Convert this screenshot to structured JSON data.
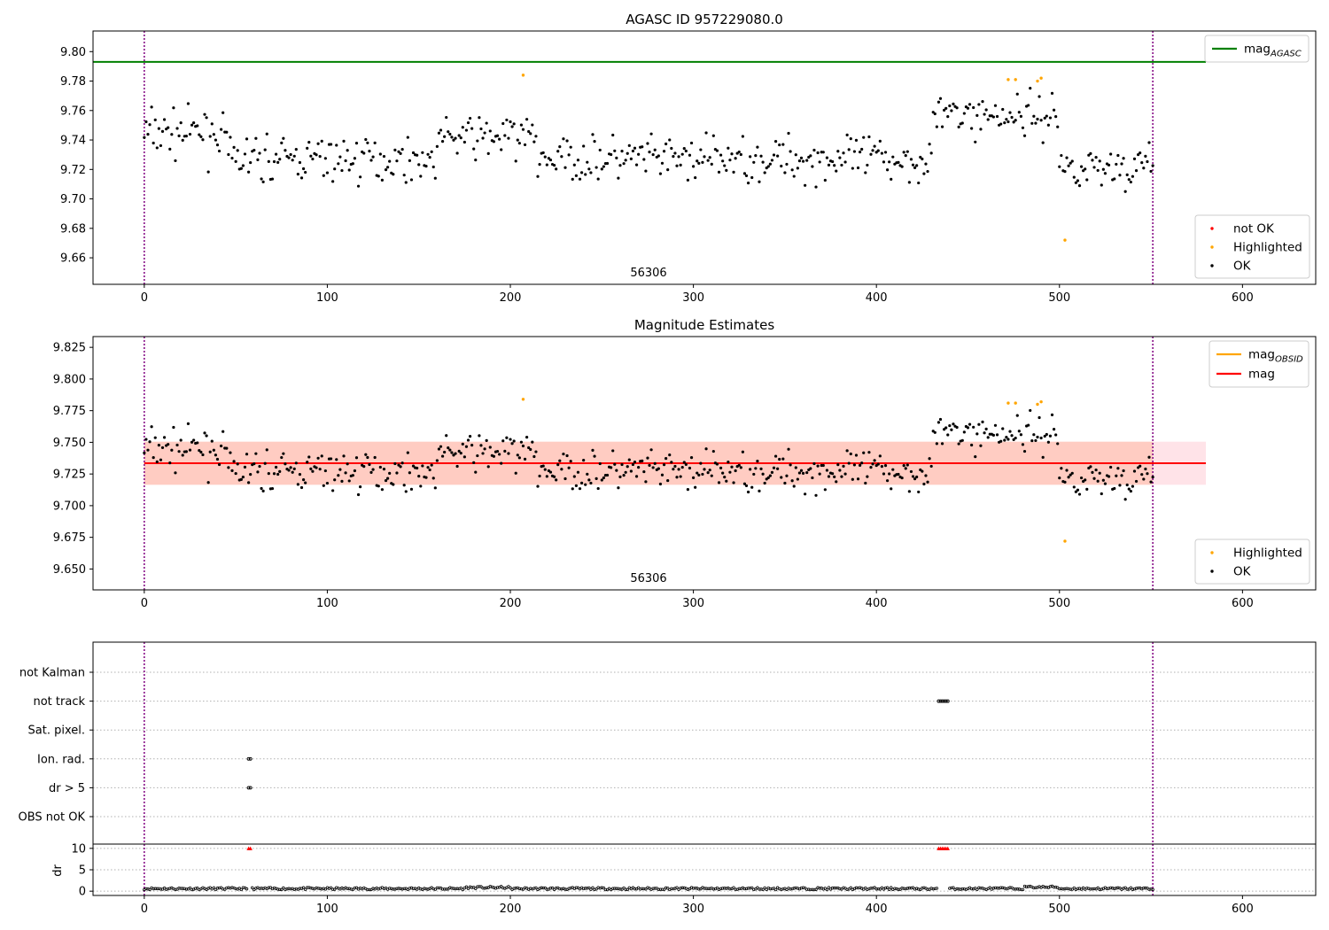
{
  "chart_data": [
    {
      "type": "scatter",
      "title": "AGASC ID 957229080.0",
      "xlim": [
        -28,
        640
      ],
      "ylim": [
        9.642,
        9.814
      ],
      "xticks": [
        0,
        100,
        200,
        300,
        400,
        500,
        600
      ],
      "yticks": [
        9.66,
        9.68,
        9.7,
        9.72,
        9.74,
        9.76,
        9.78,
        9.8
      ],
      "ytick_format": 2,
      "vlines": [
        0,
        551
      ],
      "annotation": "56306",
      "hlines": [
        {
          "name": "mag_AGASC",
          "value": 9.793,
          "color": "#008000",
          "x": [
            -28,
            580
          ]
        }
      ],
      "legend_lines": [
        {
          "base": "mag",
          "sub": "AGASC",
          "color": "#008000"
        }
      ],
      "legend_points": [
        {
          "label": "not OK",
          "color": "#ff0000"
        },
        {
          "label": "Highlighted",
          "color": "#ffa500"
        },
        {
          "label": "OK",
          "color": "#000000"
        }
      ],
      "series": [
        {
          "name": "Highlighted",
          "color": "#ffa500",
          "points": [
            [
              207,
              9.784
            ],
            [
              472,
              9.781
            ],
            [
              476,
              9.781
            ],
            [
              488,
              9.78
            ],
            [
              490,
              9.782
            ],
            [
              503,
              9.672
            ]
          ]
        }
      ]
    },
    {
      "type": "scatter",
      "title": "Magnitude Estimates",
      "xlim": [
        -28,
        640
      ],
      "ylim": [
        9.6335,
        9.8335
      ],
      "xticks": [
        0,
        100,
        200,
        300,
        400,
        500,
        600
      ],
      "yticks": [
        9.65,
        9.675,
        9.7,
        9.725,
        9.75,
        9.775,
        9.8,
        9.825
      ],
      "ytick_format": 3,
      "vlines": [
        0,
        551
      ],
      "annotation": "56306",
      "bands": [
        {
          "x": [
            0,
            580
          ],
          "y": [
            9.7165,
            9.7505
          ],
          "color": "#ffc0cb",
          "opacity": 0.45
        },
        {
          "x": [
            0,
            551
          ],
          "y": [
            9.7165,
            9.7505
          ],
          "color": "#ffa07a",
          "opacity": 0.35
        }
      ],
      "hlines": [
        {
          "name": "mag_OBSID",
          "value": 9.7335,
          "color": "#ffa500",
          "x": [
            0,
            551
          ]
        },
        {
          "name": "mag",
          "value": 9.7335,
          "color": "#ff0000",
          "x": [
            0,
            580
          ]
        }
      ],
      "legend_lines": [
        {
          "base": "mag",
          "sub": "OBSID",
          "color": "#ffa500"
        },
        {
          "base": "mag",
          "sub": "",
          "color": "#ff0000"
        }
      ],
      "legend_points": [
        {
          "label": "Highlighted",
          "color": "#ffa500"
        },
        {
          "label": "OK",
          "color": "#000000"
        }
      ],
      "series": [
        {
          "name": "Highlighted",
          "color": "#ffa500",
          "points": [
            [
              207,
              9.784
            ],
            [
              472,
              9.781
            ],
            [
              476,
              9.781
            ],
            [
              488,
              9.78
            ],
            [
              490,
              9.782
            ],
            [
              503,
              9.672
            ]
          ]
        }
      ]
    },
    {
      "type": "scatter",
      "title": "",
      "xlim": [
        -28,
        640
      ],
      "xticks": [
        0,
        100,
        200,
        300,
        400,
        500,
        600
      ],
      "categories": [
        "not Kalman",
        "not track",
        "Sat. pixel.",
        "Ion. rad.",
        "dr > 5",
        "OBS not OK"
      ],
      "vlines": [
        0,
        551
      ],
      "flag_points": {
        "not track": [
          434,
          435,
          436,
          437,
          438,
          439
        ],
        "Ion. rad.": [
          57,
          58
        ],
        "dr > 5": [
          57,
          58
        ]
      }
    },
    {
      "type": "scatter",
      "title": "",
      "xlim": [
        -28,
        640
      ],
      "ylim": [
        -1,
        11
      ],
      "xticks": [
        0,
        100,
        200,
        300,
        400,
        500,
        600
      ],
      "yticks": [
        0,
        5,
        10
      ],
      "ylabel": "dr",
      "vlines": [
        0,
        551
      ],
      "clipped_markers": [
        57,
        58,
        434,
        435,
        436,
        437,
        438,
        439
      ]
    }
  ]
}
